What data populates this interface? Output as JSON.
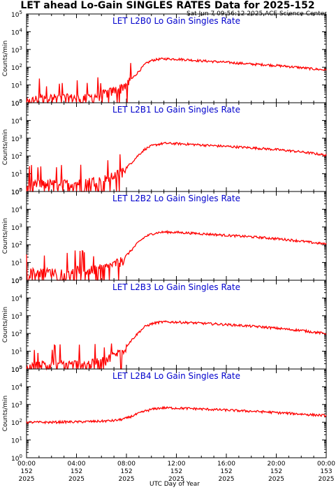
{
  "header": {
    "title": "LET ahead Lo-Gain SINGLES RATES Data for 2025-152",
    "timestamp": "Sat Jun  7 09:56:12 2025 ACE Science Center"
  },
  "colors": {
    "series": "#ff0000",
    "panel_title": "#0000cc",
    "axes": "#000000",
    "background": "#ffffff"
  },
  "x_axis": {
    "label": "UTC Day of Year",
    "ticks": [
      {
        "hour": 0,
        "time": "00:00",
        "doy": "152",
        "year": "2025"
      },
      {
        "hour": 4,
        "time": "04:00",
        "doy": "152",
        "year": "2025"
      },
      {
        "hour": 8,
        "time": "08:00",
        "doy": "152",
        "year": "2025"
      },
      {
        "hour": 12,
        "time": "12:00",
        "doy": "152",
        "year": "2025"
      },
      {
        "hour": 16,
        "time": "16:00",
        "doy": "152",
        "year": "2025"
      },
      {
        "hour": 20,
        "time": "20:00",
        "doy": "152",
        "year": "2025"
      },
      {
        "hour": 24,
        "time": "00:00",
        "doy": "153",
        "year": "2025"
      }
    ]
  },
  "y_axis": {
    "label": "Counts/min",
    "scale": "log",
    "ticks": [
      {
        "exp": 0,
        "base": "10",
        "sup": "0"
      },
      {
        "exp": 1,
        "base": "10",
        "sup": "1"
      },
      {
        "exp": 2,
        "base": "10",
        "sup": "2"
      },
      {
        "exp": 3,
        "base": "10",
        "sup": "3"
      },
      {
        "exp": 4,
        "base": "10",
        "sup": "4"
      },
      {
        "exp": 5,
        "base": "10",
        "sup": "5"
      }
    ]
  },
  "chart_data": [
    {
      "type": "line",
      "title": "LET L2B0 Lo Gain Singles Rate",
      "xlim": [
        0,
        24
      ],
      "ylim": [
        1,
        100000
      ],
      "yscale": "log",
      "series": [
        {
          "x": [
            0,
            1,
            2,
            3,
            4,
            5,
            6,
            6.5,
            7,
            7.5,
            8,
            8.5,
            9,
            9.5,
            10,
            10.5,
            11,
            12,
            13,
            14,
            15,
            16,
            17,
            18,
            19,
            20,
            21,
            22,
            23,
            24
          ],
          "y": [
            1,
            2,
            2,
            2,
            2,
            2,
            3,
            4,
            5,
            7,
            12,
            25,
            60,
            150,
            240,
            280,
            300,
            290,
            260,
            230,
            210,
            190,
            170,
            150,
            140,
            125,
            110,
            95,
            80,
            70
          ]
        }
      ]
    },
    {
      "type": "line",
      "title": "LET L2B1 Lo Gain Singles Rate",
      "xlim": [
        0,
        24
      ],
      "ylim": [
        1,
        100000
      ],
      "yscale": "log",
      "series": [
        {
          "x": [
            0,
            1,
            2,
            3,
            4,
            5,
            6,
            6.5,
            7,
            7.5,
            8,
            8.5,
            9,
            9.5,
            10,
            10.5,
            11,
            12,
            13,
            14,
            15,
            16,
            17,
            18,
            19,
            20,
            21,
            22,
            23,
            24
          ],
          "y": [
            2,
            3,
            3,
            3,
            3,
            4,
            5,
            6,
            8,
            12,
            22,
            50,
            120,
            250,
            370,
            450,
            520,
            500,
            460,
            420,
            380,
            350,
            320,
            290,
            260,
            230,
            200,
            170,
            140,
            110
          ]
        }
      ]
    },
    {
      "type": "line",
      "title": "LET L2B2 Lo Gain Singles Rate",
      "xlim": [
        0,
        24
      ],
      "ylim": [
        1,
        100000
      ],
      "yscale": "log",
      "series": [
        {
          "x": [
            0,
            1,
            2,
            3,
            4,
            5,
            6,
            6.5,
            7,
            7.5,
            8,
            8.5,
            9,
            9.5,
            10,
            10.5,
            11,
            12,
            13,
            14,
            15,
            16,
            17,
            18,
            19,
            20,
            21,
            22,
            23,
            24
          ],
          "y": [
            3,
            3,
            3,
            3,
            4,
            4,
            5,
            6,
            8,
            12,
            25,
            60,
            150,
            280,
            400,
            480,
            520,
            500,
            460,
            420,
            380,
            340,
            310,
            280,
            250,
            220,
            190,
            160,
            130,
            110
          ]
        }
      ]
    },
    {
      "type": "line",
      "title": "LET L2B3 Lo Gain Singles Rate",
      "xlim": [
        0,
        24
      ],
      "ylim": [
        1,
        100000
      ],
      "yscale": "log",
      "series": [
        {
          "x": [
            0,
            1,
            2,
            3,
            4,
            5,
            6,
            6.5,
            7,
            7.5,
            8,
            8.5,
            9,
            9.5,
            10,
            10.5,
            11,
            12,
            13,
            14,
            15,
            16,
            17,
            18,
            19,
            20,
            21,
            22,
            23,
            24
          ],
          "y": [
            1,
            2,
            2,
            2,
            2,
            2,
            3,
            4,
            6,
            10,
            20,
            50,
            120,
            250,
            350,
            420,
            450,
            440,
            410,
            380,
            350,
            320,
            290,
            260,
            230,
            200,
            170,
            150,
            120,
            100
          ]
        }
      ]
    },
    {
      "type": "line",
      "title": "LET L2B4 Lo Gain Singles Rate",
      "xlim": [
        0,
        24
      ],
      "ylim": [
        1,
        100000
      ],
      "yscale": "log",
      "series": [
        {
          "x": [
            0,
            1,
            2,
            3,
            4,
            5,
            6,
            6.5,
            7,
            7.5,
            8,
            8.5,
            9,
            9.5,
            10,
            10.5,
            11,
            12,
            13,
            14,
            15,
            16,
            17,
            18,
            19,
            20,
            21,
            22,
            23,
            24
          ],
          "y": [
            100,
            100,
            100,
            105,
            105,
            110,
            115,
            120,
            125,
            140,
            170,
            230,
            320,
            430,
            530,
            610,
            650,
            630,
            600,
            560,
            520,
            490,
            450,
            420,
            390,
            350,
            320,
            290,
            260,
            240
          ]
        }
      ]
    }
  ]
}
